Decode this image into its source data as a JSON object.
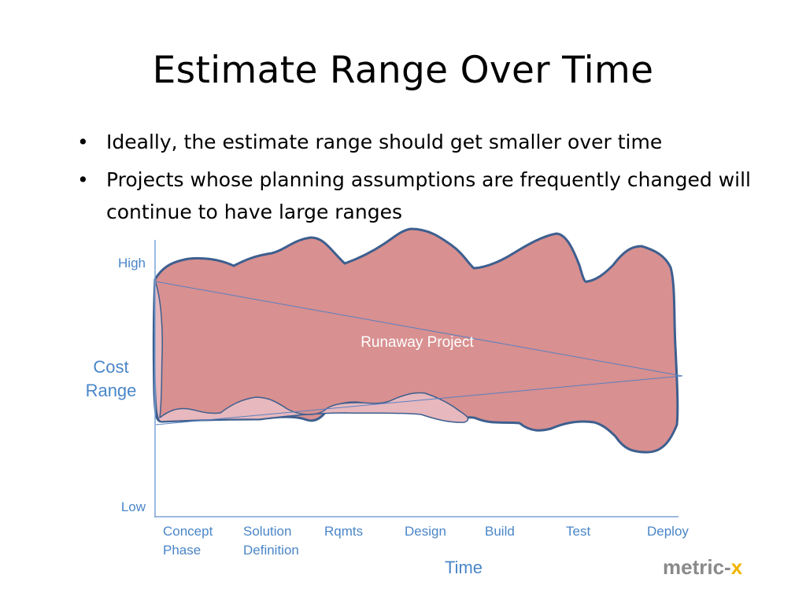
{
  "slide": {
    "title": "Estimate Range Over Time",
    "bullets": [
      "Ideally, the estimate range should get smaller over time",
      "Projects whose planning assumptions are frequently changed will continue to have large ranges"
    ]
  },
  "diagram": {
    "y_axis_title_line1": "Cost",
    "y_axis_title_line2": "Range",
    "y_high": "High",
    "y_low": "Low",
    "x_axis_title": "Time",
    "phases": [
      {
        "line1": "Concept",
        "line2": "Phase"
      },
      {
        "line1": "Solution",
        "line2": "Definition"
      },
      {
        "line1": "Rqmts",
        "line2": ""
      },
      {
        "line1": "Design",
        "line2": ""
      },
      {
        "line1": "Build",
        "line2": ""
      },
      {
        "line1": "Test",
        "line2": ""
      },
      {
        "line1": "Deploy",
        "line2": ""
      }
    ],
    "region_label": "Runaway Project",
    "colors": {
      "runaway_fill": "#d89090",
      "ideal_fill": "#e7b8bd",
      "outline": "#3d5f8f",
      "axis_and_labels": "#4a86c8",
      "lines": "#5b7fc0"
    }
  },
  "logo": {
    "part1": "metric-",
    "part2": "x"
  }
}
